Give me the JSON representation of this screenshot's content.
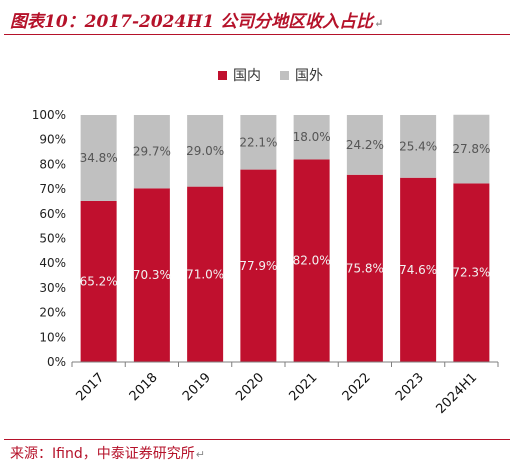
{
  "header": {
    "title": "图表10：2017-2024H1 公司分地区收入占比",
    "title_mark": "↵"
  },
  "footer": {
    "source": "来源：Ifind，中泰证券研究所",
    "source_mark": "↵"
  },
  "chart_data": {
    "type": "bar",
    "stacked": true,
    "categories": [
      "2017",
      "2018",
      "2019",
      "2020",
      "2021",
      "2022",
      "2023",
      "2024H1"
    ],
    "series": [
      {
        "name": "国内",
        "color": "#c0102e",
        "values": [
          65.2,
          70.3,
          71.0,
          77.9,
          82.0,
          75.8,
          74.6,
          72.3
        ],
        "labels": [
          "65.2%",
          "70.3%",
          "71.0%",
          "77.9%",
          "82.0%",
          "75.8%",
          "74.6%",
          "72.3%"
        ]
      },
      {
        "name": "国外",
        "color": "#c0c0c0",
        "values": [
          34.8,
          29.7,
          29.0,
          22.1,
          18.0,
          24.2,
          25.4,
          27.8
        ],
        "labels": [
          "34.8%",
          "29.7%",
          "29.0%",
          "22.1%",
          "18.0%",
          "24.2%",
          "25.4%",
          "27.8%"
        ]
      }
    ],
    "ylim": [
      0,
      100
    ],
    "yticks": [
      "0%",
      "10%",
      "20%",
      "30%",
      "40%",
      "50%",
      "60%",
      "70%",
      "80%",
      "90%",
      "100%"
    ],
    "legend_position": "top-center",
    "grid": false,
    "xlabel": "",
    "ylabel": ""
  }
}
